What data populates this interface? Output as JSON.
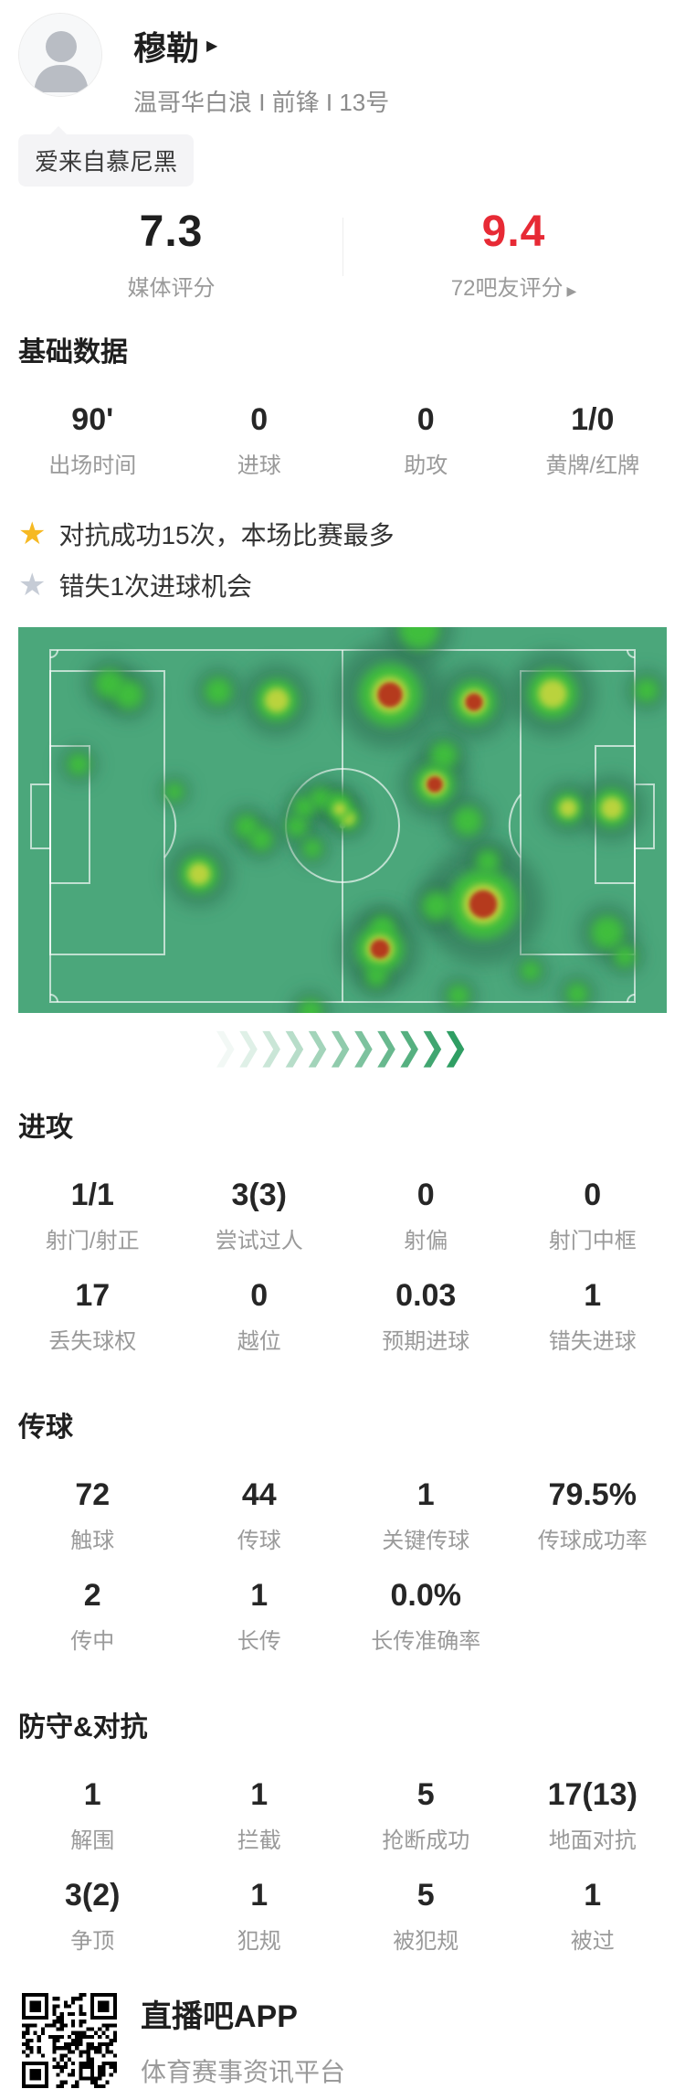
{
  "header": {
    "name": "穆勒",
    "subtitle": "温哥华白浪 I 前锋 I 13号",
    "tag": "爱来自慕尼黑"
  },
  "icons": {
    "name_arrow": "▶",
    "fans_arrow": "▶",
    "star": "★",
    "chevron": "❯"
  },
  "ratings": {
    "media": {
      "value": "7.3",
      "label": "媒体评分"
    },
    "fans": {
      "value": "9.4",
      "label": "72吧友评分"
    }
  },
  "highlights": [
    {
      "icon": "gold-star",
      "text": "对抗成功15次，本场比赛最多"
    },
    {
      "icon": "gray-star",
      "text": "错失1次进球机会"
    }
  ],
  "sections": {
    "basic": {
      "title": "基础数据",
      "stats": [
        {
          "value": "90'",
          "label": "出场时间"
        },
        {
          "value": "0",
          "label": "进球"
        },
        {
          "value": "0",
          "label": "助攻"
        },
        {
          "value": "1/0",
          "label": "黄牌/红牌"
        }
      ]
    },
    "attack": {
      "title": "进攻",
      "stats": [
        {
          "value": "1/1",
          "label": "射门/射正"
        },
        {
          "value": "3(3)",
          "label": "尝试过人"
        },
        {
          "value": "0",
          "label": "射偏"
        },
        {
          "value": "0",
          "label": "射门中框"
        },
        {
          "value": "17",
          "label": "丢失球权"
        },
        {
          "value": "0",
          "label": "越位"
        },
        {
          "value": "0.03",
          "label": "预期进球"
        },
        {
          "value": "1",
          "label": "错失进球"
        }
      ]
    },
    "passing": {
      "title": "传球",
      "stats": [
        {
          "value": "72",
          "label": "触球"
        },
        {
          "value": "44",
          "label": "传球"
        },
        {
          "value": "1",
          "label": "关键传球"
        },
        {
          "value": "79.5%",
          "label": "传球成功率"
        },
        {
          "value": "2",
          "label": "传中"
        },
        {
          "value": "1",
          "label": "长传"
        },
        {
          "value": "0.0%",
          "label": "长传准确率"
        }
      ]
    },
    "defense": {
      "title": "防守&对抗",
      "stats": [
        {
          "value": "1",
          "label": "解围"
        },
        {
          "value": "1",
          "label": "拦截"
        },
        {
          "value": "5",
          "label": "抢断成功"
        },
        {
          "value": "17(13)",
          "label": "地面对抗"
        },
        {
          "value": "3(2)",
          "label": "争顶"
        },
        {
          "value": "1",
          "label": "犯规"
        },
        {
          "value": "5",
          "label": "被犯规"
        },
        {
          "value": "1",
          "label": "被过"
        }
      ]
    }
  },
  "heatmap": {
    "field_color": "#4BA77B",
    "line_color": "rgba(255,255,255,0.65)",
    "halo_color": "#2F7052",
    "green_color": "#3FC13A",
    "yellow_color": "#C8D63E",
    "red_color": "#B5331F",
    "blobs": [
      [
        439,
        2,
        22,
        1
      ],
      [
        407,
        74,
        34,
        3
      ],
      [
        499,
        82,
        24,
        3
      ],
      [
        100,
        62,
        16,
        1
      ],
      [
        121,
        74,
        16,
        1
      ],
      [
        219,
        70,
        15,
        1
      ],
      [
        283,
        80,
        23,
        2
      ],
      [
        585,
        73,
        27,
        2
      ],
      [
        688,
        69,
        13,
        1
      ],
      [
        66,
        150,
        12,
        1
      ],
      [
        466,
        140,
        15,
        1
      ],
      [
        456,
        172,
        22,
        3
      ],
      [
        171,
        180,
        10,
        1
      ],
      [
        602,
        198,
        17,
        2
      ],
      [
        650,
        198,
        21,
        2
      ],
      [
        305,
        218,
        12,
        1
      ],
      [
        313,
        197,
        12,
        1
      ],
      [
        331,
        187,
        12,
        1
      ],
      [
        350,
        193,
        12,
        1
      ],
      [
        361,
        209,
        13,
        2
      ],
      [
        352,
        199,
        12,
        2
      ],
      [
        322,
        242,
        11,
        1
      ],
      [
        250,
        218,
        13,
        1
      ],
      [
        266,
        232,
        13,
        1
      ],
      [
        198,
        270,
        21,
        2
      ],
      [
        509,
        303,
        38,
        3
      ],
      [
        458,
        305,
        16,
        1
      ],
      [
        399,
        328,
        13,
        1
      ],
      [
        396,
        352,
        26,
        3
      ],
      [
        392,
        382,
        12,
        1
      ],
      [
        492,
        212,
        16,
        1
      ],
      [
        514,
        256,
        13,
        1
      ],
      [
        645,
        334,
        18,
        1
      ],
      [
        664,
        360,
        12,
        1
      ],
      [
        561,
        376,
        11,
        1
      ],
      [
        482,
        403,
        12,
        1
      ],
      [
        612,
        401,
        12,
        1
      ],
      [
        320,
        420,
        13,
        1
      ]
    ]
  },
  "footer": {
    "app_name": "直播吧APP",
    "app_desc": "体育赛事资讯平台"
  }
}
